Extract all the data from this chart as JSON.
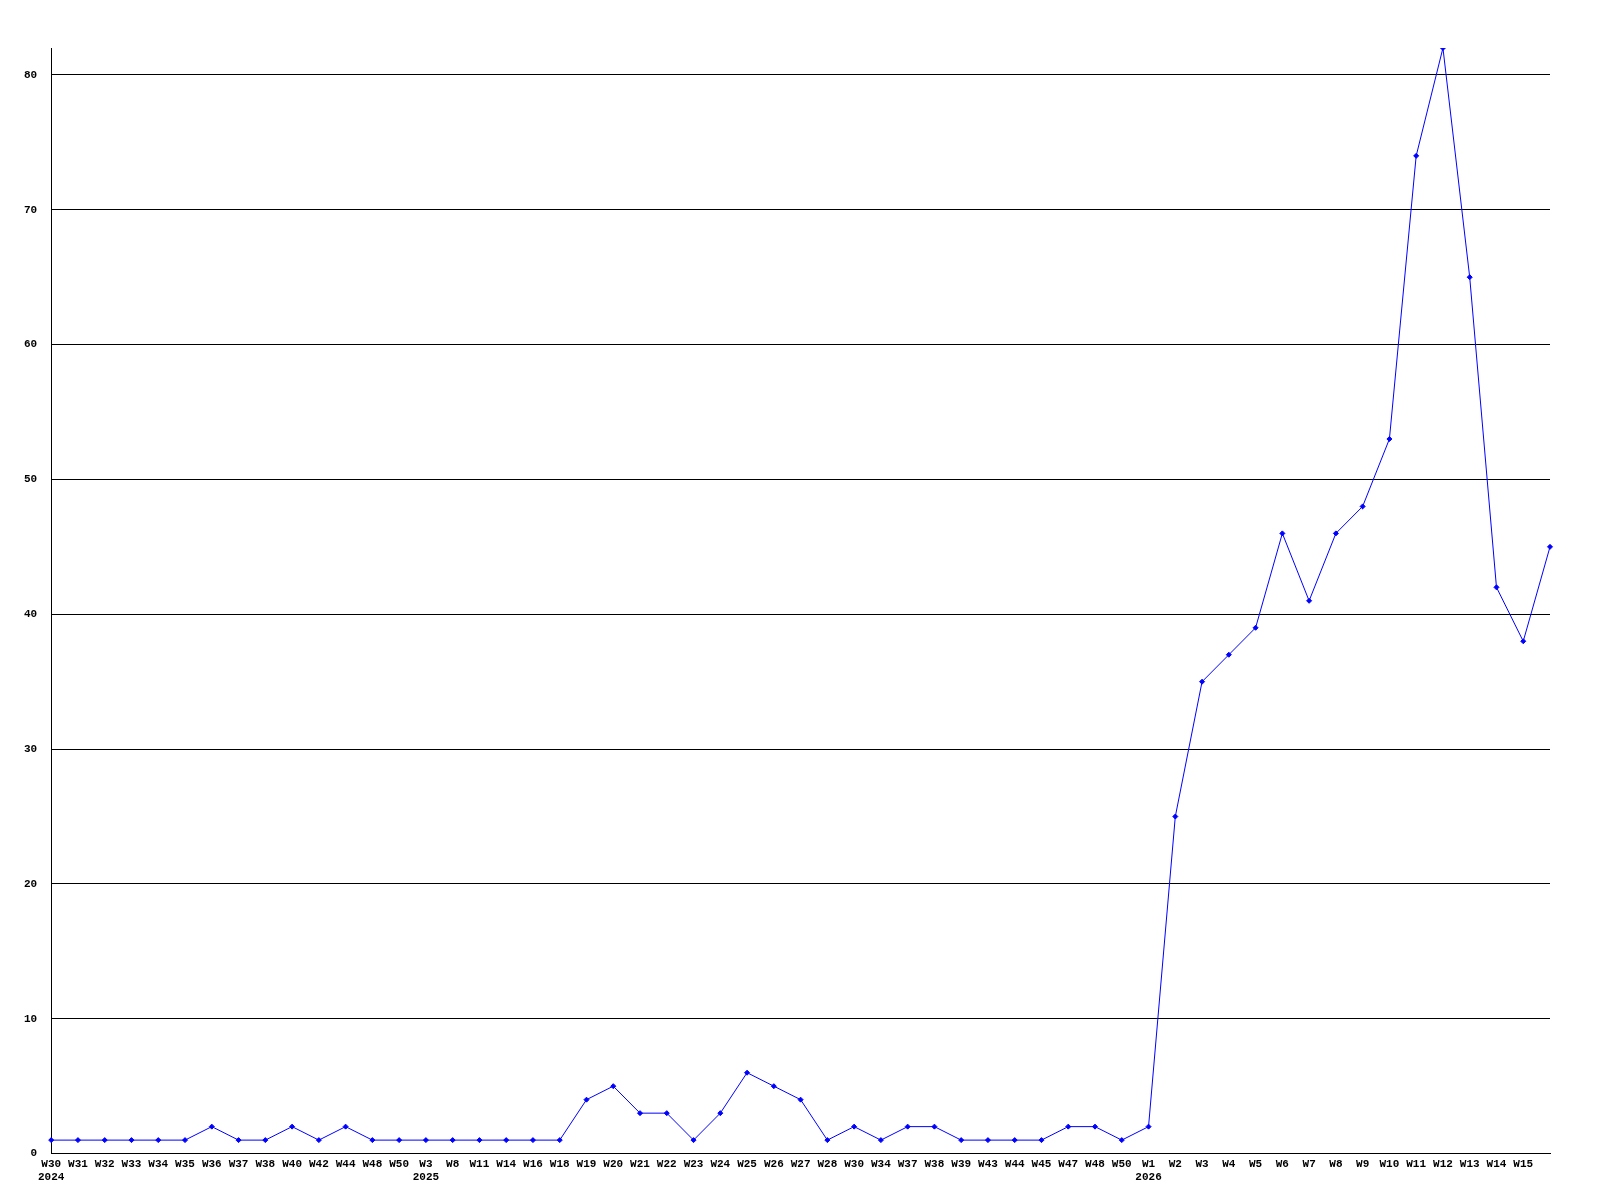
{
  "chart_data": {
    "type": "line",
    "categories": [
      "W30\n2024",
      "W31",
      "W32",
      "W33",
      "W34",
      "W35",
      "W36",
      "W37",
      "W38",
      "W40",
      "W42",
      "W44",
      "W48",
      "W50",
      "W3\n2025",
      "W8",
      "W11",
      "W14",
      "W16",
      "W18",
      "W19",
      "W20",
      "W21",
      "W22",
      "W23",
      "W24",
      "W25",
      "W26",
      "W27",
      "W28",
      "W30",
      "W34",
      "W37",
      "W38",
      "W39",
      "W43",
      "W44",
      "W45",
      "W47",
      "W48",
      "W50",
      "W1\n2026",
      "W2",
      "W3",
      "W4",
      "W5",
      "W6",
      "W7",
      "W8",
      "W9",
      "W10",
      "W11",
      "W12",
      "W13",
      "W14",
      "W15",
      null
    ],
    "series": [
      {
        "color": "#0000ff",
        "values": [
          1,
          1,
          1,
          1,
          1,
          1,
          2,
          1,
          1,
          2,
          1,
          2,
          1,
          1,
          1,
          1,
          1,
          1,
          1,
          1,
          4,
          5,
          3,
          3,
          1,
          3,
          6,
          5,
          4,
          1,
          2,
          1,
          2,
          2,
          1,
          1,
          1,
          1,
          2,
          2,
          1,
          2,
          25,
          35,
          37,
          39,
          46,
          41,
          46,
          48,
          53,
          74,
          82,
          65,
          42,
          38,
          45
        ]
      }
    ],
    "ylim": [
      0,
      82
    ],
    "yticks": [
      0,
      10,
      20,
      30,
      40,
      50,
      60,
      70,
      80
    ],
    "grid": "y",
    "legend": false,
    "marker": "diamond",
    "line_style": "solid"
  }
}
